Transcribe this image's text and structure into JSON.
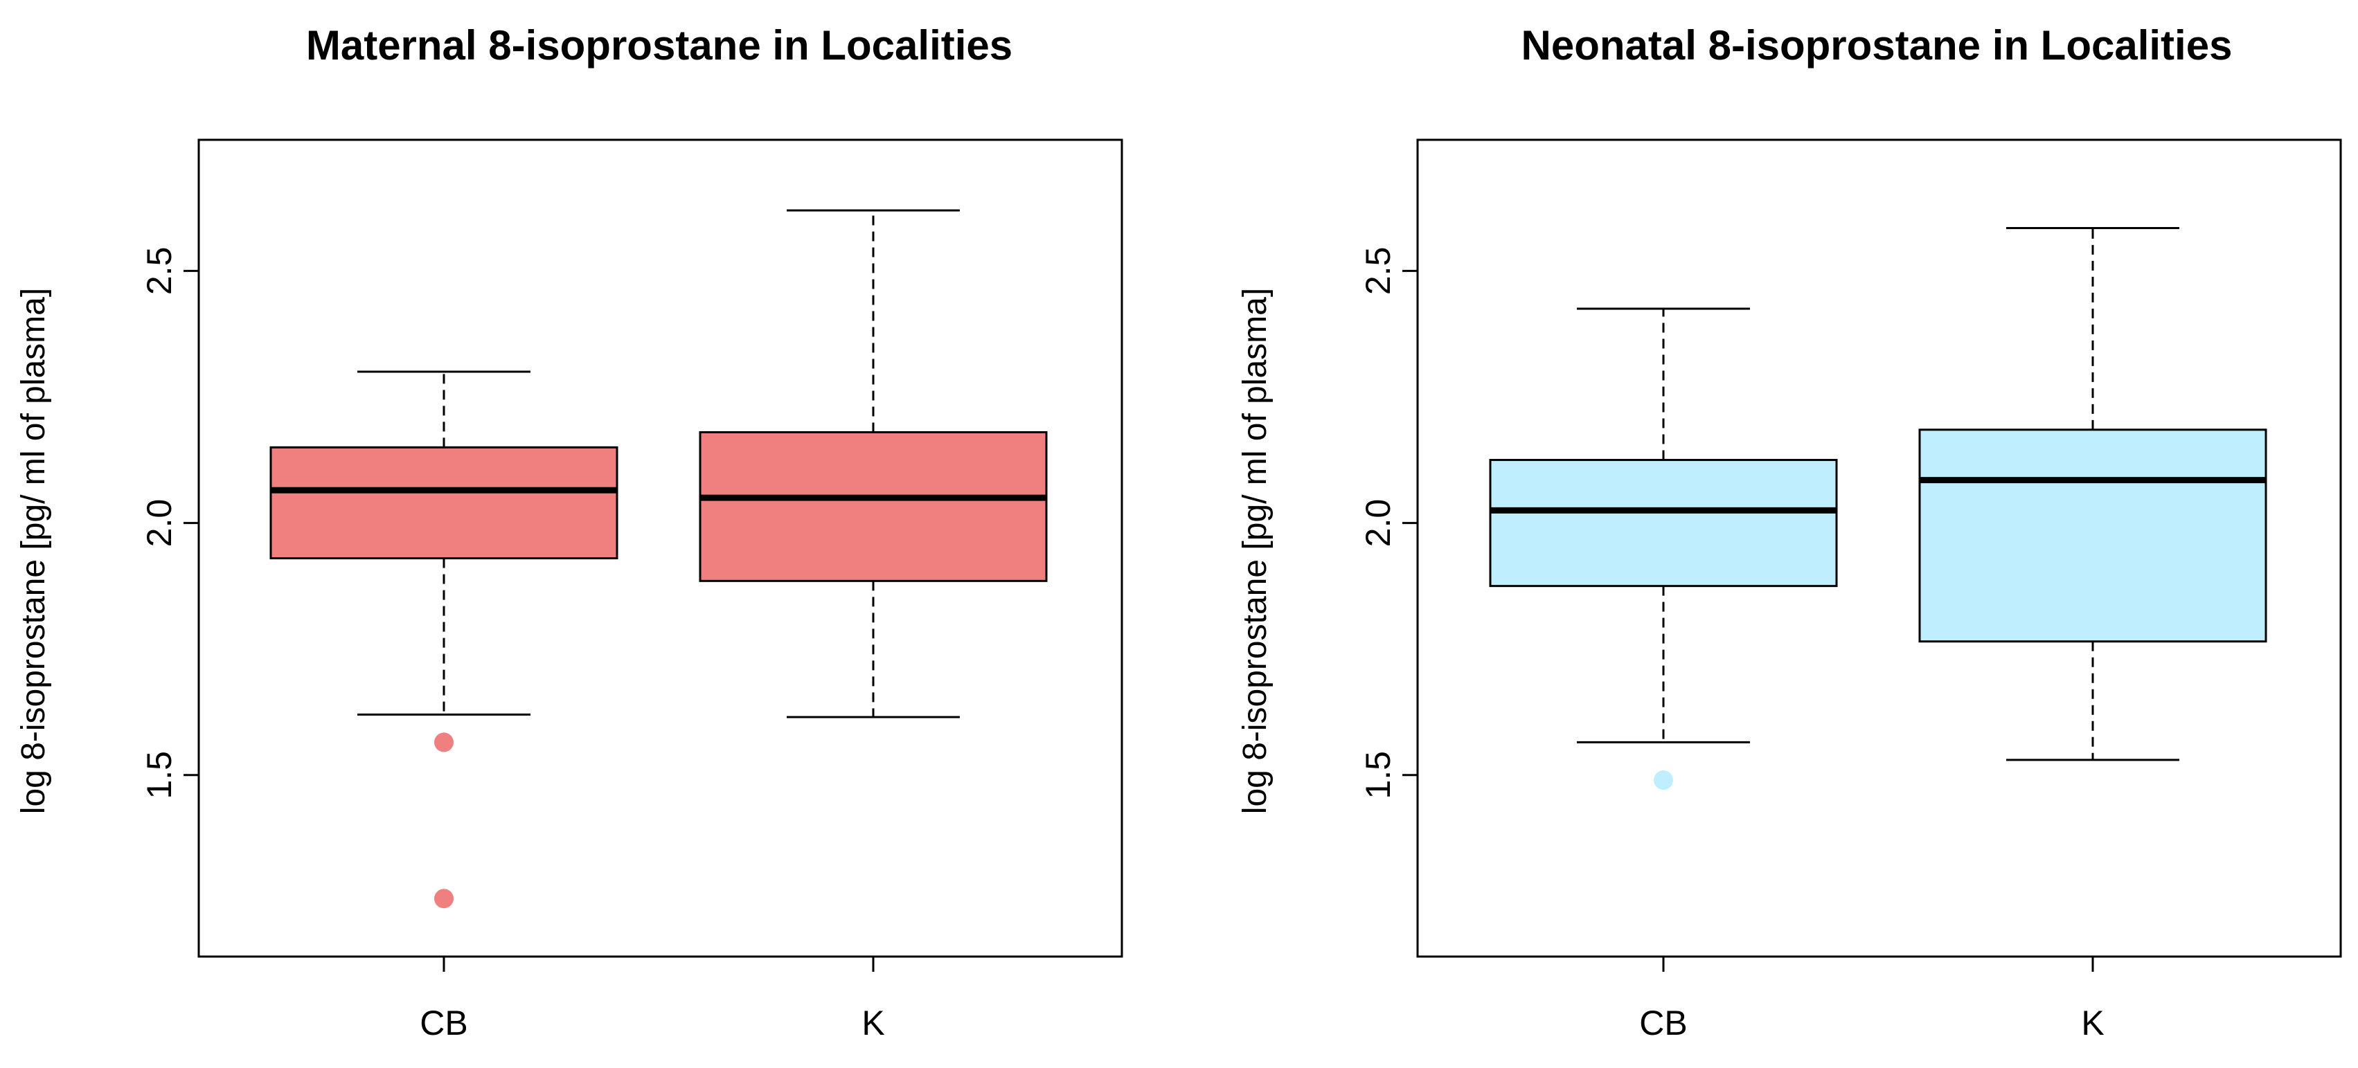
{
  "chart_data": [
    {
      "type": "box",
      "title": "Maternal 8-isoprostane in Localities",
      "xlabel": "",
      "ylabel": "log 8-isoprostane [pg/ ml of plasma]",
      "ylim": [
        1.14,
        2.76
      ],
      "yticks": [
        1.5,
        2.0,
        2.5
      ],
      "ytick_labels": [
        "1.5",
        "2.0",
        "2.5"
      ],
      "categories": [
        "CB",
        "K"
      ],
      "fill_color": "#F08080",
      "boxes": [
        {
          "category": "CB",
          "whisker_low": 1.62,
          "q1": 1.93,
          "median": 2.065,
          "q3": 2.15,
          "whisker_high": 2.3,
          "outliers": [
            1.565,
            1.255
          ]
        },
        {
          "category": "K",
          "whisker_low": 1.615,
          "q1": 1.885,
          "median": 2.05,
          "q3": 2.18,
          "whisker_high": 2.62,
          "outliers": []
        }
      ]
    },
    {
      "type": "box",
      "title": "Neonatal 8-isoprostane in Localities",
      "xlabel": "",
      "ylabel": "log 8-isoprostane [pg/ ml of plasma]",
      "ylim": [
        1.14,
        2.76
      ],
      "yticks": [
        1.5,
        2.0,
        2.5
      ],
      "ytick_labels": [
        "1.5",
        "2.0",
        "2.5"
      ],
      "categories": [
        "CB",
        "K"
      ],
      "fill_color": "#BFEFFF",
      "boxes": [
        {
          "category": "CB",
          "whisker_low": 1.565,
          "q1": 1.875,
          "median": 2.025,
          "q3": 2.125,
          "whisker_high": 2.425,
          "outliers": [
            1.49
          ]
        },
        {
          "category": "K",
          "whisker_low": 1.53,
          "q1": 1.765,
          "median": 2.085,
          "q3": 2.185,
          "whisker_high": 2.585,
          "outliers": []
        }
      ]
    }
  ]
}
